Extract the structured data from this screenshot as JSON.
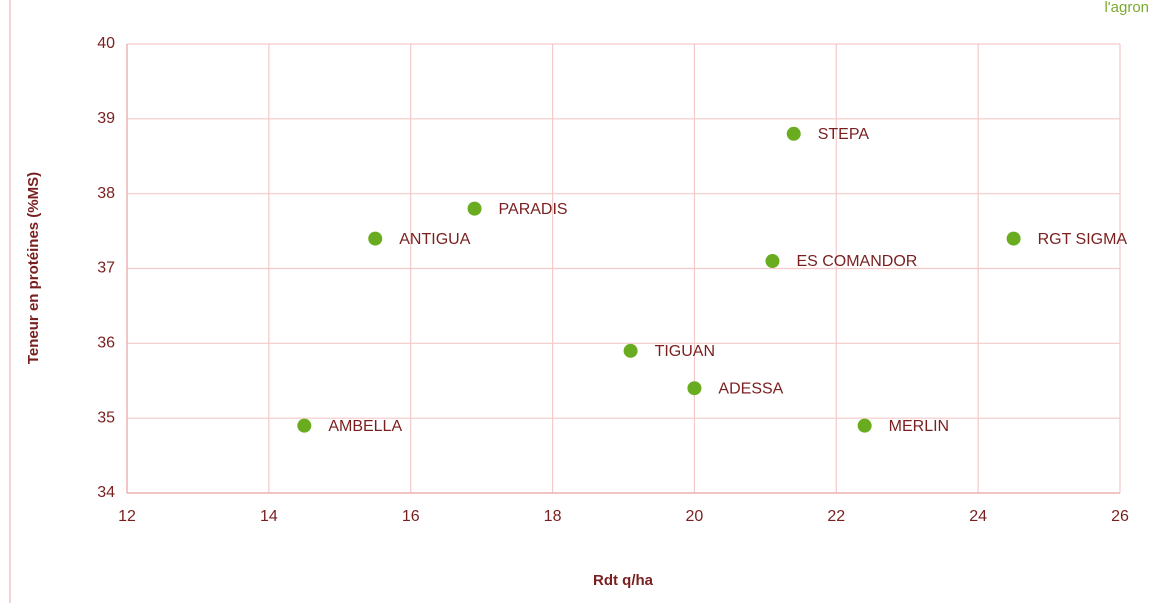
{
  "chart_data": {
    "type": "scatter",
    "corner_text": "l'agron",
    "x_label": "Rdt q/ha",
    "y_label": "Teneur en protéines (%MS)",
    "labels": [
      "AMBELLA",
      "ANTIGUA",
      "PARADIS",
      "TIGUAN",
      "ADESSA",
      "ES COMANDOR",
      "STEPA",
      "MERLIN",
      "RGT SIGMA"
    ],
    "x": [
      14.5,
      15.5,
      16.9,
      19.1,
      20,
      21.1,
      21.4,
      22.4,
      24.5
    ],
    "values": [
      34.9,
      37.4,
      37.8,
      35.9,
      35.4,
      37.1,
      38.8,
      34.9,
      37.4
    ],
    "color": "#6aac1f",
    "xlim": [
      12,
      26
    ],
    "xticks": [
      12,
      14,
      16,
      18,
      20,
      22,
      24,
      26
    ],
    "ylim": [
      34,
      40
    ],
    "yticks": [
      34,
      35,
      36,
      37,
      38,
      39,
      40
    ],
    "grid": true
  }
}
